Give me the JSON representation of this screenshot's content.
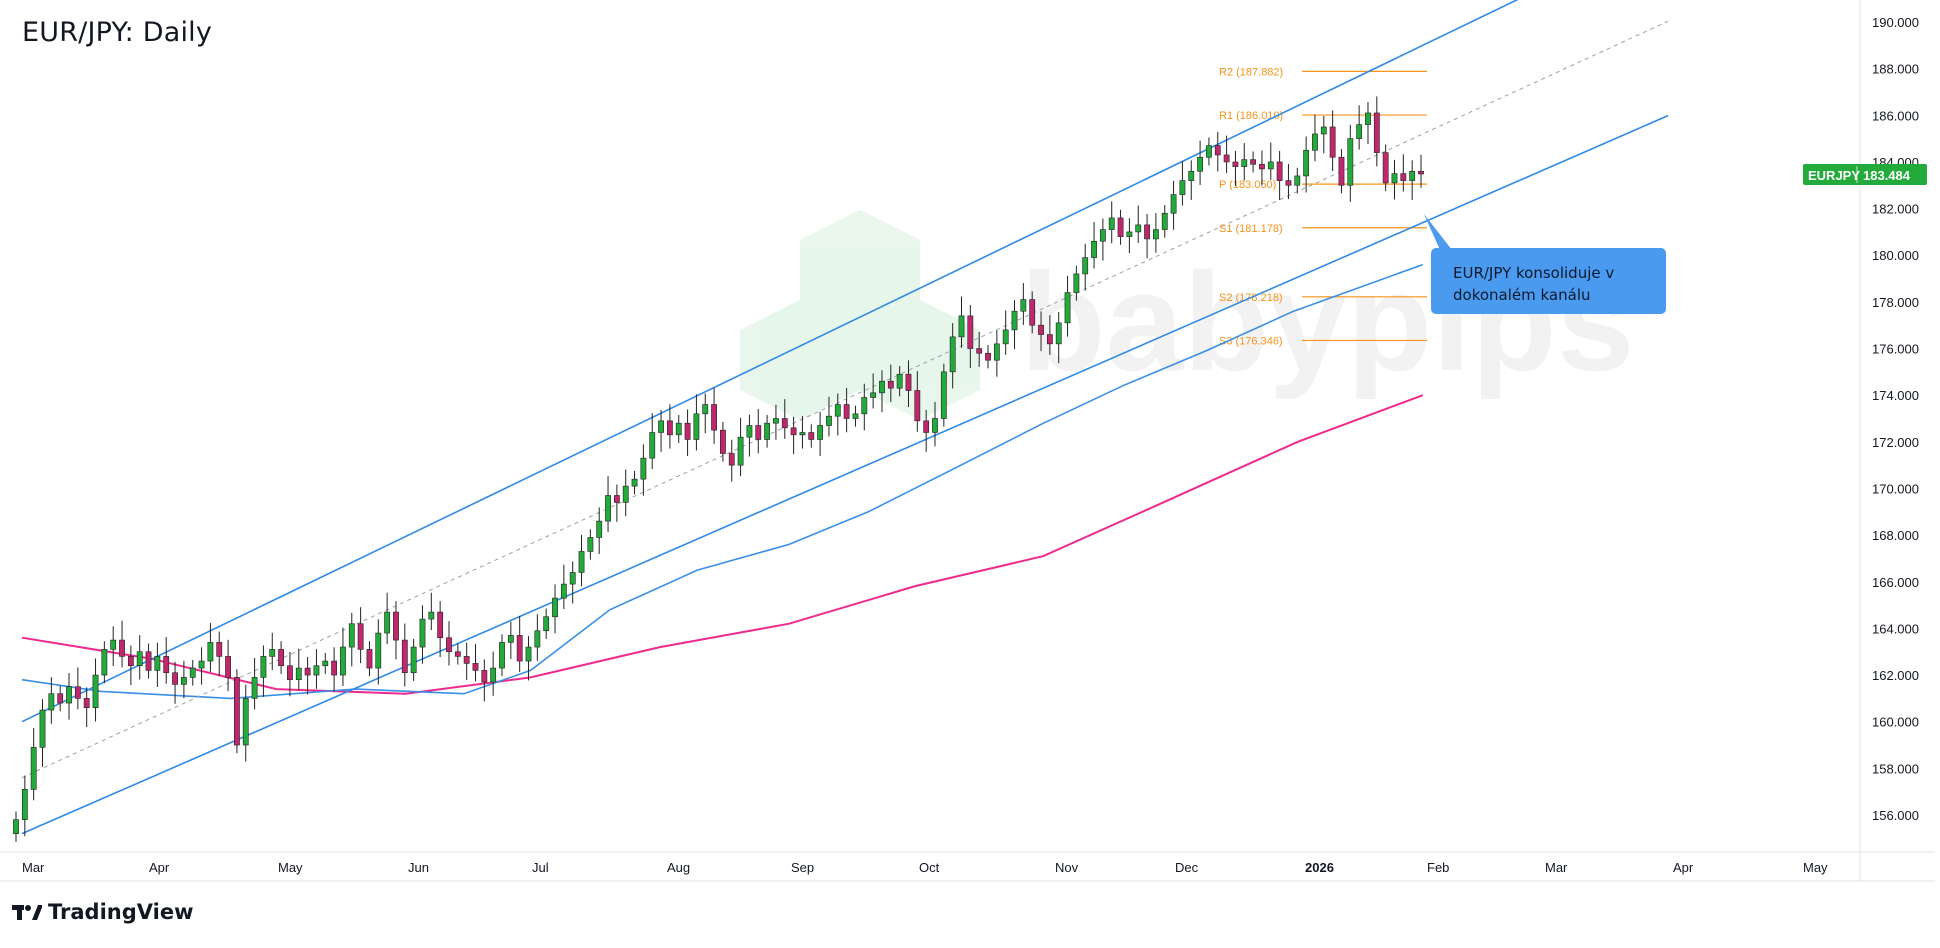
{
  "title": "EUR/JPY: Daily",
  "brand": "TradingView",
  "watermark": "babypips",
  "callout_text_line1": "EUR/JPY konsoliduje v",
  "callout_text_line2": "dokonalém kanálu",
  "price_tag": {
    "symbol": "EURJPY",
    "value": "183.484"
  },
  "colors": {
    "up": "#22ab3a",
    "down": "#c0286d",
    "channel": "#2f8ae6",
    "ma_short": "#3a8fe6",
    "ma_long": "#ee2a8e",
    "pivot": "#f7931a",
    "grid_text": "#131722",
    "price_tag": "#22ab3a"
  },
  "chart_data": {
    "type": "candlestick",
    "title": "EUR/JPY: Daily",
    "ylim": [
      154.0,
      191.0
    ],
    "y_ticks": [
      "156.000",
      "158.000",
      "160.000",
      "162.000",
      "164.000",
      "166.000",
      "168.000",
      "170.000",
      "172.000",
      "174.000",
      "176.000",
      "178.000",
      "180.000",
      "182.000",
      "184.000",
      "186.000",
      "188.000",
      "190.000"
    ],
    "x_ticks": [
      "Mar",
      "Apr",
      "May",
      "Jun",
      "Jul",
      "Aug",
      "Sep",
      "Oct",
      "Nov",
      "Dec",
      "2026",
      "Feb",
      "Mar",
      "Apr",
      "May"
    ],
    "pivot_levels": [
      {
        "name": "R2",
        "label": "R2 (187.882)",
        "value": 187.882
      },
      {
        "name": "R1",
        "label": "R1 (186.010)",
        "value": 186.01
      },
      {
        "name": "P",
        "label": "P (183.050)",
        "value": 183.05
      },
      {
        "name": "S1",
        "label": "S1 (181.178)",
        "value": 181.178
      },
      {
        "name": "S2",
        "label": "S2 (178.218)",
        "value": 178.218
      },
      {
        "name": "S3",
        "label": "S3 (176.346)",
        "value": 176.346
      }
    ],
    "channel": {
      "upper": [
        [
          "2025-03-01",
          160.0
        ],
        [
          "2026-01-31",
          189.0
        ]
      ],
      "lower": [
        [
          "2025-03-01",
          155.2
        ],
        [
          "2026-01-31",
          181.4
        ]
      ]
    },
    "ma_short": [
      [
        "2025-03-01",
        161.8
      ],
      [
        "2025-03-20",
        161.3
      ],
      [
        "2025-04-20",
        161.0
      ],
      [
        "2025-05-20",
        161.4
      ],
      [
        "2025-06-15",
        161.2
      ],
      [
        "2025-07-01",
        162.2
      ],
      [
        "2025-07-20",
        164.8
      ],
      [
        "2025-08-10",
        166.5
      ],
      [
        "2025-09-01",
        167.6
      ],
      [
        "2025-09-20",
        169.0
      ],
      [
        "2025-10-10",
        170.8
      ],
      [
        "2025-11-01",
        172.8
      ],
      [
        "2025-11-20",
        174.4
      ],
      [
        "2025-12-10",
        175.9
      ],
      [
        "2025-12-31",
        177.6
      ],
      [
        "2026-01-31",
        179.6
      ]
    ],
    "ma_long": [
      [
        "2025-03-01",
        163.6
      ],
      [
        "2025-04-01",
        162.7
      ],
      [
        "2025-05-01",
        161.4
      ],
      [
        "2025-06-01",
        161.2
      ],
      [
        "2025-07-01",
        161.9
      ],
      [
        "2025-08-01",
        163.2
      ],
      [
        "2025-09-01",
        164.2
      ],
      [
        "2025-10-01",
        165.8
      ],
      [
        "2025-11-01",
        167.1
      ],
      [
        "2025-12-01",
        169.5
      ],
      [
        "2026-01-01",
        172.0
      ],
      [
        "2026-01-31",
        174.0
      ]
    ],
    "candles_daily_close": [
      155.8,
      157.1,
      158.9,
      160.5,
      161.2,
      160.8,
      161.5,
      161.0,
      160.6,
      162.0,
      163.1,
      163.5,
      162.8,
      162.4,
      163.0,
      162.2,
      162.8,
      162.1,
      161.6,
      161.9,
      162.3,
      162.6,
      163.4,
      162.8,
      161.9,
      159.0,
      161.0,
      161.9,
      162.8,
      163.1,
      162.4,
      161.8,
      162.3,
      162.0,
      162.4,
      162.6,
      162.0,
      163.2,
      164.2,
      163.1,
      162.3,
      163.8,
      164.7,
      163.5,
      162.1,
      163.2,
      164.4,
      164.7,
      163.6,
      163.0,
      162.8,
      162.5,
      162.2,
      161.7,
      162.3,
      163.4,
      163.7,
      162.6,
      163.2,
      163.9,
      164.5,
      165.3,
      165.9,
      166.4,
      167.3,
      167.9,
      168.6,
      169.7,
      169.4,
      170.1,
      170.4,
      171.3,
      172.4,
      172.9,
      172.3,
      172.8,
      172.1,
      173.2,
      173.6,
      172.5,
      171.5,
      171.0,
      172.2,
      172.7,
      172.1,
      172.8,
      173.0,
      172.6,
      172.3,
      172.4,
      172.1,
      172.7,
      173.1,
      173.6,
      173.0,
      173.2,
      173.9,
      174.1,
      174.6,
      174.3,
      174.9,
      174.2,
      172.9,
      172.4,
      173.0,
      175.0,
      176.5,
      177.4,
      176.0,
      175.8,
      175.5,
      176.2,
      176.8,
      177.6,
      178.1,
      177.0,
      176.6,
      176.2,
      177.1,
      178.4,
      179.2,
      179.9,
      180.6,
      181.1,
      181.6,
      180.8,
      181.0,
      181.3,
      180.7,
      181.1,
      181.8,
      182.6,
      183.2,
      183.6,
      184.2,
      184.7,
      184.3,
      184.0,
      183.8,
      184.1,
      183.9,
      183.7,
      184.0,
      183.2,
      183.0,
      183.4,
      184.5,
      185.2,
      185.5,
      184.2,
      183.0,
      185.0,
      185.6,
      186.1,
      184.4,
      183.1,
      183.5,
      183.2,
      183.6,
      183.484
    ]
  }
}
